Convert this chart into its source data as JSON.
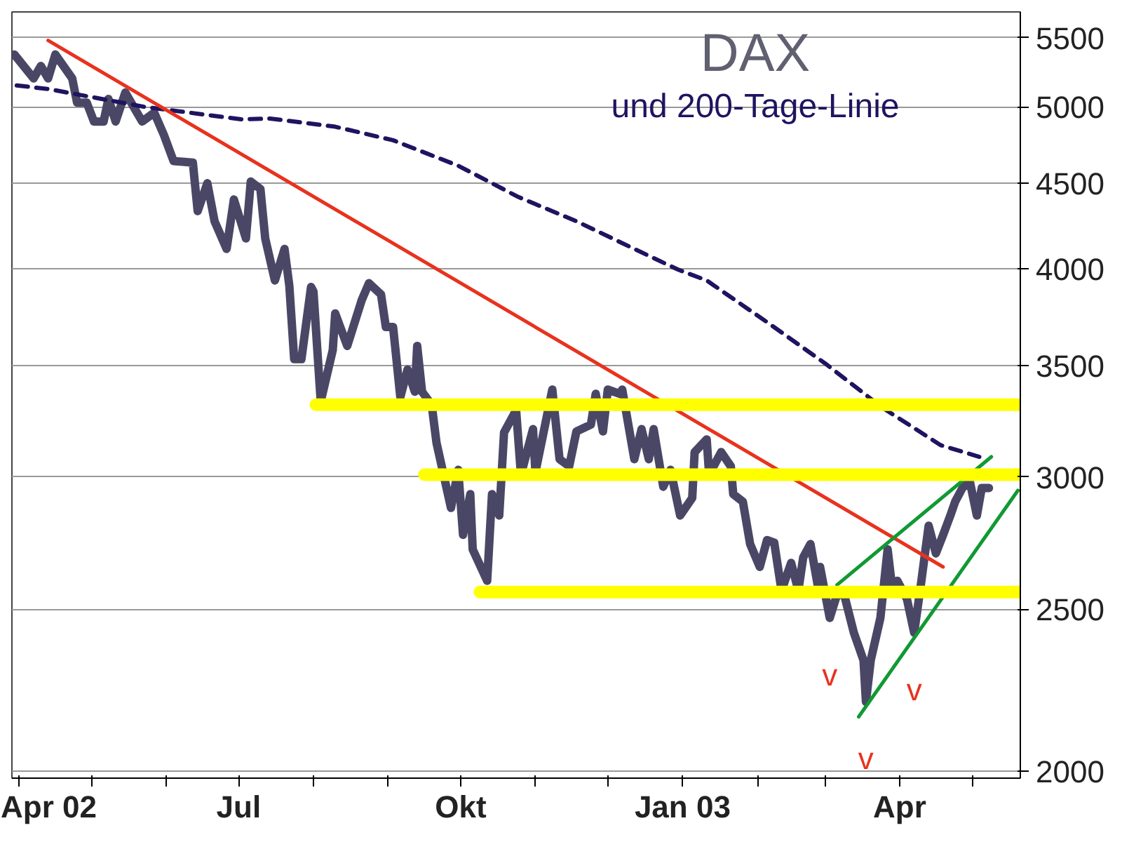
{
  "chart_data": {
    "type": "line",
    "title": "DAX",
    "subtitle": "und 200-Tage-Linie",
    "xlim": [
      "2002-03-29",
      "2003-05-21"
    ],
    "xticks": [
      {
        "value": "2002-04-01",
        "label": "Apr 02"
      },
      {
        "value": "2002-05-01",
        "label": null
      },
      {
        "value": "2002-06-01",
        "label": null
      },
      {
        "value": "2002-07-01",
        "label": "Jul"
      },
      {
        "value": "2002-08-01",
        "label": null
      },
      {
        "value": "2002-09-01",
        "label": null
      },
      {
        "value": "2002-10-01",
        "label": "Okt"
      },
      {
        "value": "2002-11-01",
        "label": null
      },
      {
        "value": "2002-12-01",
        "label": null
      },
      {
        "value": "2003-01-01",
        "label": "Jan 03"
      },
      {
        "value": "2003-02-01",
        "label": null
      },
      {
        "value": "2003-03-01",
        "label": null
      },
      {
        "value": "2003-04-01",
        "label": "Apr"
      },
      {
        "value": "2003-05-01",
        "label": null
      }
    ],
    "ylim": [
      1980,
      5700
    ],
    "yticks": [
      2000,
      2500,
      3000,
      3500,
      4000,
      4500,
      5000,
      5500
    ],
    "log": "y",
    "grid": "y",
    "legend": false,
    "series": [
      {
        "color": "#4a4766",
        "line_style": "solid",
        "x": [
          "2002-03-30",
          "2002-04-07",
          "2002-04-10",
          "2002-04-13",
          "2002-04-16",
          "2002-04-23",
          "2002-04-25",
          "2002-04-29",
          "2002-05-02",
          "2002-05-06",
          "2002-05-08",
          "2002-05-11",
          "2002-05-15",
          "2002-05-22",
          "2002-05-27",
          "2002-05-31",
          "2002-06-04",
          "2002-06-12",
          "2002-06-14",
          "2002-06-18",
          "2002-06-21",
          "2002-06-26",
          "2002-06-29",
          "2002-07-04",
          "2002-07-06",
          "2002-07-10",
          "2002-07-12",
          "2002-07-16",
          "2002-07-20",
          "2002-07-22",
          "2002-07-24",
          "2002-07-27",
          "2002-07-31",
          "2002-08-01",
          "2002-08-04",
          "2002-08-09",
          "2002-08-10",
          "2002-08-15",
          "2002-08-21",
          "2002-08-24",
          "2002-08-29",
          "2002-08-31",
          "2002-09-03",
          "2002-09-04",
          "2002-09-06",
          "2002-09-09",
          "2002-09-12",
          "2002-09-13",
          "2002-09-15",
          "2002-09-19",
          "2002-09-21",
          "2002-09-27",
          "2002-09-30",
          "2002-10-02",
          "2002-10-05",
          "2002-10-06",
          "2002-10-12",
          "2002-10-14",
          "2002-10-17",
          "2002-10-19",
          "2002-10-24",
          "2002-10-26",
          "2002-10-31",
          "2002-11-01",
          "2002-11-08",
          "2002-11-11",
          "2002-11-15",
          "2002-11-18",
          "2002-11-24",
          "2002-11-26",
          "2002-11-29",
          "2002-12-01",
          "2002-12-06",
          "2002-12-07",
          "2002-12-12",
          "2002-12-15",
          "2002-12-18",
          "2002-12-20",
          "2002-12-24",
          "2002-12-27",
          "2002-12-31",
          "2003-01-05",
          "2003-01-06",
          "2003-01-11",
          "2003-01-12",
          "2003-01-17",
          "2003-01-21",
          "2003-01-22",
          "2003-01-26",
          "2003-01-29",
          "2003-02-02",
          "2003-02-05",
          "2003-02-08",
          "2003-02-11",
          "2003-02-15",
          "2003-02-18",
          "2003-02-20",
          "2003-02-23",
          "2003-02-26",
          "2003-02-27",
          "2003-03-03",
          "2003-03-06",
          "2003-03-09",
          "2003-03-13",
          "2003-03-17",
          "2003-03-18",
          "2003-03-20",
          "2003-03-24",
          "2003-03-27",
          "2003-03-29",
          "2003-03-31",
          "2003-04-04",
          "2003-04-07",
          "2003-04-10",
          "2003-04-13",
          "2003-04-16",
          "2003-04-19",
          "2003-04-22",
          "2003-04-24",
          "2003-04-27",
          "2003-04-30",
          "2003-05-03",
          "2003-05-05",
          "2003-05-08"
        ],
        "values": [
          5375,
          5200,
          5290,
          5200,
          5375,
          5200,
          5030,
          5030,
          4900,
          4900,
          5055,
          4900,
          5100,
          4900,
          4960,
          4810,
          4640,
          4630,
          4330,
          4500,
          4270,
          4110,
          4400,
          4170,
          4510,
          4465,
          4170,
          3935,
          4110,
          3905,
          3530,
          3530,
          3900,
          3875,
          3330,
          3575,
          3760,
          3595,
          3830,
          3920,
          3860,
          3690,
          3690,
          3575,
          3350,
          3480,
          3375,
          3595,
          3375,
          3315,
          3145,
          2875,
          3030,
          2770,
          2930,
          2715,
          2600,
          2930,
          2845,
          3190,
          3290,
          3010,
          3205,
          3020,
          3385,
          3075,
          3045,
          3195,
          3225,
          3365,
          3195,
          3385,
          3365,
          3385,
          3075,
          3205,
          3075,
          3205,
          2960,
          3030,
          2845,
          2915,
          3105,
          3160,
          3010,
          3105,
          3045,
          2930,
          2900,
          2735,
          2650,
          2750,
          2740,
          2565,
          2665,
          2565,
          2685,
          2735,
          2585,
          2650,
          2470,
          2550,
          2550,
          2420,
          2330,
          2200,
          2330,
          2470,
          2715,
          2565,
          2600,
          2535,
          2420,
          2600,
          2805,
          2700,
          2770,
          2845,
          2900,
          2955,
          2985,
          2845,
          2955,
          2955
        ]
      },
      {
        "color": "#1e1460",
        "line_style": "dashed",
        "x": [
          "2002-03-31",
          "2002-04-13",
          "2002-05-23",
          "2002-07-02",
          "2002-07-14",
          "2002-08-10",
          "2002-09-03",
          "2002-09-30",
          "2002-10-25",
          "2002-11-18",
          "2002-12-12",
          "2002-12-30",
          "2003-01-11",
          "2003-02-05",
          "2003-03-01",
          "2003-03-25",
          "2003-04-18",
          "2003-05-04"
        ],
        "values": [
          5150,
          5125,
          5000,
          4915,
          4920,
          4865,
          4775,
          4610,
          4415,
          4270,
          4110,
          3995,
          3935,
          3715,
          3510,
          3300,
          3135,
          3085
        ]
      },
      {
        "color": "#e8321e",
        "line_style": "solid",
        "x": [
          "2002-04-13",
          "2003-04-19"
        ],
        "values": [
          5480,
          2650
        ]
      },
      {
        "color": "#119933",
        "line_style": "solid",
        "x": [
          "2003-03-06",
          "2003-05-09"
        ],
        "values": [
          2585,
          3085
        ]
      },
      {
        "color": "#119933",
        "line_style": "solid",
        "x": [
          "2003-03-15",
          "2003-05-20"
        ],
        "values": [
          2155,
          2945
        ]
      },
      {
        "color": "#ffff00",
        "line_style": "solid",
        "x": [
          "2002-08-02",
          "2003-05-21"
        ],
        "values": [
          3315,
          3315
        ]
      },
      {
        "color": "#ffff00",
        "line_style": "solid",
        "x": [
          "2002-09-16",
          "2003-05-21"
        ],
        "values": [
          3010,
          3010
        ]
      },
      {
        "color": "#ffff00",
        "line_style": "solid",
        "x": [
          "2002-10-09",
          "2003-05-21"
        ],
        "values": [
          2560,
          2560
        ]
      }
    ],
    "annotations": [
      {
        "text": "v",
        "x": "2003-03-03",
        "y": 2470
      },
      {
        "text": "v",
        "x": "2003-03-18",
        "y": 2200
      },
      {
        "text": "v",
        "x": "2003-04-07",
        "y": 2420
      }
    ]
  }
}
